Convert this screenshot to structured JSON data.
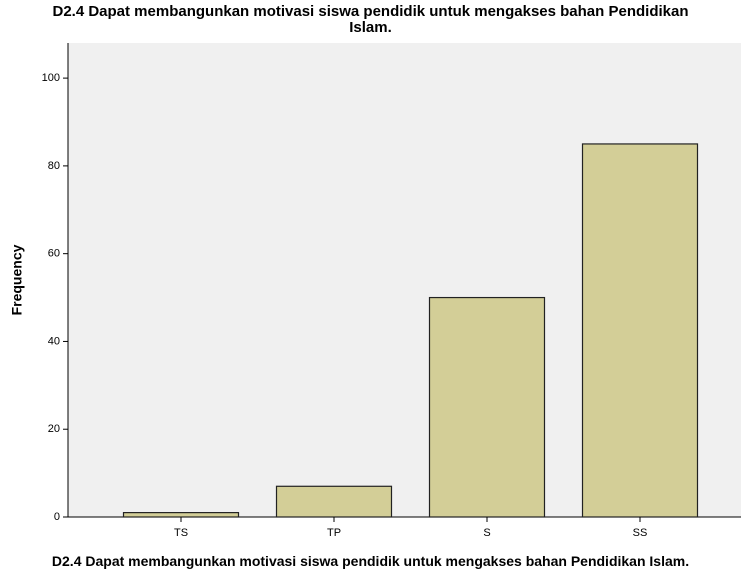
{
  "chart_data": {
    "type": "bar",
    "title": "D2.4 Dapat membangunkan motivasi siswa pendidik untuk mengakses bahan Pendidikan Islam.",
    "x_label": "D2.4 Dapat membangunkan motivasi siswa pendidik untuk mengakses bahan Pendidikan Islam.",
    "y_label": "Frequency",
    "categories": [
      "TS",
      "TP",
      "S",
      "SS"
    ],
    "values": [
      1,
      7,
      50,
      85
    ],
    "color": "#d3ce97",
    "ylim": [
      0,
      108
    ],
    "yticks": [
      0,
      20,
      40,
      60,
      80,
      100
    ]
  }
}
